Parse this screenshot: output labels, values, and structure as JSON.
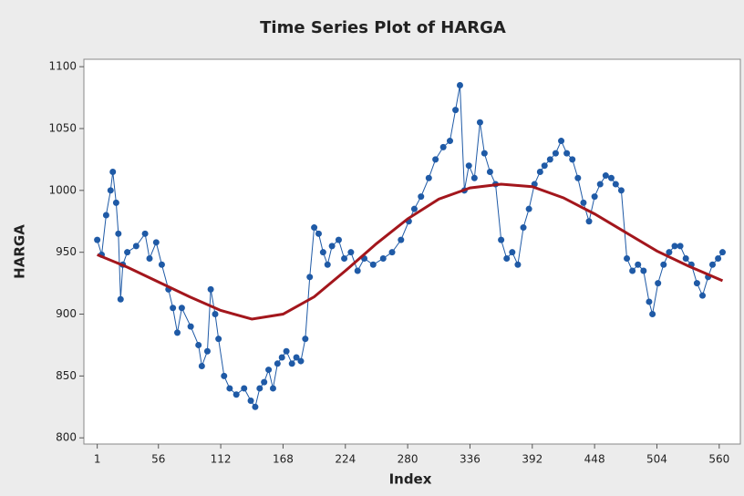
{
  "chart_data": {
    "type": "line",
    "title": "Time Series Plot of HARGA",
    "x_label": "Index",
    "y_label": "HARGA",
    "xlim": [
      -11,
      579
    ],
    "ylim": [
      795,
      1106
    ],
    "xticks": [
      1,
      56,
      112,
      168,
      224,
      280,
      336,
      392,
      448,
      504,
      560
    ],
    "yticks": [
      800,
      850,
      900,
      950,
      1000,
      1050,
      1100
    ],
    "grid": false,
    "series": [
      {
        "color": "#1f5aa6",
        "marker": true,
        "x": [
          1,
          5,
          9,
          13,
          15,
          18,
          20,
          22,
          24,
          28,
          36,
          44,
          48,
          54,
          59,
          65,
          69,
          73,
          77,
          85,
          92,
          95,
          100,
          103,
          107,
          110,
          115,
          120,
          126,
          133,
          139,
          143,
          147,
          151,
          155,
          159,
          163,
          167,
          171,
          176,
          180,
          184,
          188,
          192,
          196,
          200,
          204,
          208,
          212,
          218,
          223,
          229,
          235,
          241,
          249,
          258,
          266,
          274,
          281,
          286,
          292,
          299,
          305,
          312,
          318,
          323,
          327,
          331,
          335,
          340,
          345,
          349,
          354,
          359,
          364,
          369,
          374,
          379,
          384,
          389,
          394,
          399,
          403,
          408,
          413,
          418,
          423,
          428,
          433,
          438,
          443,
          448,
          453,
          458,
          463,
          467,
          472,
          477,
          482,
          487,
          492,
          497,
          500,
          505,
          510,
          515,
          520,
          525,
          530,
          535,
          540,
          545,
          550,
          554,
          559,
          563
        ],
        "values": [
          960,
          948,
          980,
          1000,
          1015,
          990,
          965,
          912,
          940,
          950,
          955,
          965,
          945,
          958,
          940,
          920,
          905,
          885,
          905,
          890,
          875,
          858,
          870,
          920,
          900,
          880,
          850,
          840,
          835,
          840,
          830,
          825,
          840,
          845,
          855,
          840,
          860,
          865,
          870,
          860,
          865,
          862,
          880,
          930,
          970,
          965,
          950,
          940,
          955,
          960,
          945,
          950,
          935,
          945,
          940,
          945,
          950,
          960,
          975,
          985,
          995,
          1010,
          1025,
          1035,
          1040,
          1065,
          1085,
          1000,
          1020,
          1010,
          1055,
          1030,
          1015,
          1005,
          960,
          945,
          950,
          940,
          970,
          985,
          1005,
          1015,
          1020,
          1025,
          1030,
          1040,
          1030,
          1025,
          1010,
          990,
          975,
          995,
          1005,
          1012,
          1010,
          1005,
          1000,
          945,
          935,
          940,
          935,
          910,
          900,
          925,
          940,
          950,
          955,
          955,
          945,
          940,
          925,
          915,
          930,
          940,
          945,
          950
        ]
      },
      {
        "color": "#a3161c",
        "marker": false,
        "x": [
          1,
          28,
          56,
          84,
          112,
          140,
          168,
          196,
          224,
          252,
          280,
          308,
          336,
          364,
          392,
          420,
          448,
          476,
          504,
          532,
          563
        ],
        "values": [
          948,
          938,
          926,
          914,
          903,
          896,
          900,
          914,
          935,
          957,
          977,
          993,
          1002,
          1005,
          1003,
          994,
          981,
          966,
          951,
          939,
          927
        ]
      }
    ]
  }
}
